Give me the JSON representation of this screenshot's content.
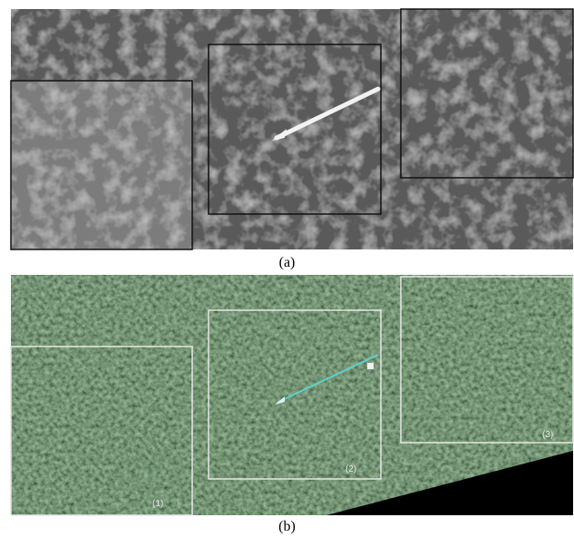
{
  "panels": [
    {
      "caption": "(a)"
    },
    {
      "caption": "(b)",
      "boxes": [
        {
          "label": "(1)"
        },
        {
          "label": "(2)"
        },
        {
          "label": "(3)"
        }
      ]
    }
  ]
}
